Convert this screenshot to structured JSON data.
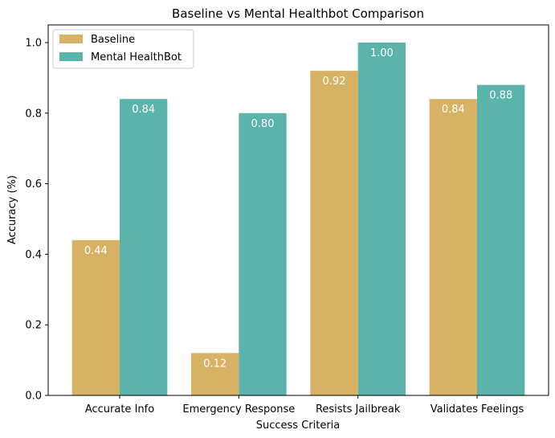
{
  "chart_data": {
    "type": "bar",
    "title": "Baseline vs Mental Healthbot Comparison",
    "xlabel": "Success Criteria",
    "ylabel": "Accuracy (%)",
    "categories": [
      "Accurate Info",
      "Emergency Response",
      "Resists Jailbreak",
      "Validates Feelings"
    ],
    "series": [
      {
        "name": "Baseline",
        "values": [
          0.44,
          0.12,
          0.92,
          0.84
        ],
        "labels": [
          "0.44",
          "0.12",
          "0.92",
          "0.84"
        ],
        "color": "#d8b264"
      },
      {
        "name": "Mental HealthBot",
        "values": [
          0.84,
          0.8,
          1.0,
          0.88
        ],
        "labels": [
          "0.84",
          "0.80",
          "1.00",
          "0.88"
        ],
        "color": "#5bb4ab"
      }
    ],
    "ylim": [
      0,
      1.05
    ],
    "yticks": [
      "0.0",
      "0.2",
      "0.4",
      "0.6",
      "0.8",
      "1.0"
    ],
    "legend_position": "top-left",
    "grid": false
  }
}
